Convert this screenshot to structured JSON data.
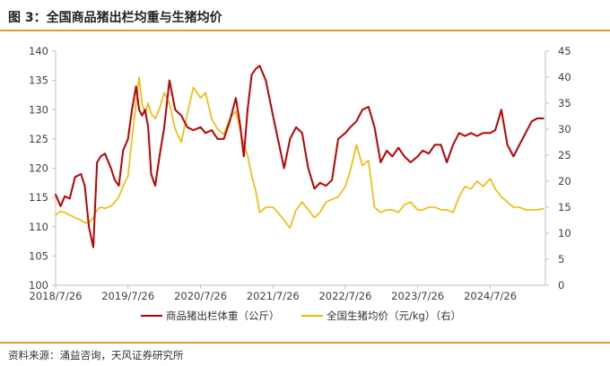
{
  "header": {
    "title": "图 3：全国商品猪出栏均重与生猪均价"
  },
  "source": "资料来源：涌益咨询，天风证券研究所",
  "colors": {
    "accent": "#E79633",
    "weight_series": "#C00000",
    "price_series": "#F5B800",
    "axis": "#BFBFBF"
  },
  "chart_data": {
    "type": "line",
    "title": "图 3：全国商品猪出栏均重与生猪均价",
    "x_ticks": [
      "2018/7/26",
      "2019/7/26",
      "2020/7/26",
      "2021/7/26",
      "2022/7/26",
      "2023/7/26",
      "2024/7/26"
    ],
    "x_range": [
      "2018/7/26",
      "2025/4/30"
    ],
    "y_left": {
      "min": 100,
      "max": 140,
      "step": 5,
      "ticks": [
        "100",
        "105",
        "110",
        "115",
        "120",
        "125",
        "130",
        "135",
        "140"
      ]
    },
    "y_right": {
      "min": 0,
      "max": 45,
      "step": 5,
      "ticks": [
        "0",
        "5",
        "10",
        "15",
        "20",
        "25",
        "30",
        "35",
        "40",
        "45"
      ]
    },
    "grid": false,
    "legend": "bottom",
    "series": [
      {
        "name": "商品猪出栏体重（公斤）",
        "axis": "left",
        "x": [
          "2018/7/26",
          "2018/8/20",
          "2018/9/10",
          "2018/10/5",
          "2018/11/1",
          "2018/12/1",
          "2018/12/20",
          "2019/1/10",
          "2019/2/1",
          "2019/2/20",
          "2019/3/10",
          "2019/4/1",
          "2019/5/1",
          "2019/5/20",
          "2019/6/10",
          "2019/7/1",
          "2019/7/26",
          "2019/8/15",
          "2019/9/5",
          "2019/9/20",
          "2019/10/5",
          "2019/10/20",
          "2019/11/5",
          "2019/11/20",
          "2019/12/10",
          "2020/1/1",
          "2020/1/25",
          "2020/2/20",
          "2020/3/20",
          "2020/4/20",
          "2020/5/20",
          "2020/6/20",
          "2020/7/26",
          "2020/8/20",
          "2020/9/20",
          "2020/10/20",
          "2020/11/20",
          "2020/12/20",
          "2021/1/20",
          "2021/2/10",
          "2021/3/1",
          "2021/3/20",
          "2021/4/10",
          "2021/5/1",
          "2021/5/20",
          "2021/6/20",
          "2021/7/26",
          "2021/8/20",
          "2021/9/20",
          "2021/10/20",
          "2021/11/20",
          "2021/12/20",
          "2022/1/20",
          "2022/2/20",
          "2022/3/20",
          "2022/4/20",
          "2022/5/20",
          "2022/6/20",
          "2022/7/26",
          "2022/8/20",
          "2022/9/20",
          "2022/10/20",
          "2022/11/20",
          "2022/12/20",
          "2023/1/20",
          "2023/2/20",
          "2023/3/20",
          "2023/4/20",
          "2023/5/20",
          "2023/6/20",
          "2023/7/26",
          "2023/8/20",
          "2023/9/20",
          "2023/10/20",
          "2023/11/20",
          "2023/12/20",
          "2024/1/20",
          "2024/2/20",
          "2024/3/20",
          "2024/4/20",
          "2024/5/20",
          "2024/6/20",
          "2024/7/26",
          "2024/8/20",
          "2024/9/20",
          "2024/10/20",
          "2024/11/20",
          "2024/12/20",
          "2025/1/20",
          "2025/2/20",
          "2025/3/20",
          "2025/4/20"
        ],
        "values": [
          115.5,
          113.5,
          115.2,
          114.8,
          118.5,
          119,
          117,
          110,
          106.5,
          121,
          122,
          122.5,
          120,
          118,
          117,
          123,
          125,
          130,
          134,
          130,
          129,
          130,
          127,
          119,
          117,
          122,
          127,
          135,
          130,
          129,
          127,
          126.5,
          127,
          126,
          126.5,
          125,
          125,
          128,
          132,
          127.5,
          122,
          130,
          136,
          137,
          137.5,
          135,
          129,
          125,
          120,
          125,
          127,
          126,
          120,
          116.5,
          117.5,
          117,
          118,
          125,
          126,
          127,
          128,
          130,
          130.5,
          127,
          121,
          123,
          122,
          123.5,
          122,
          121,
          122,
          123,
          122.5,
          124,
          124,
          121,
          124,
          126,
          125.5,
          126,
          125.5,
          126,
          126,
          126.5,
          130,
          124,
          122,
          124,
          126,
          128,
          128.5,
          128.5
        ]
      },
      {
        "name": "全国生猪均价（元/kg）（右）",
        "axis": "right",
        "x": [
          "2018/7/26",
          "2018/8/20",
          "2018/9/10",
          "2018/10/5",
          "2018/11/1",
          "2018/12/1",
          "2018/12/20",
          "2019/1/10",
          "2019/2/1",
          "2019/2/20",
          "2019/3/10",
          "2019/4/1",
          "2019/5/1",
          "2019/5/20",
          "2019/6/10",
          "2019/7/1",
          "2019/7/26",
          "2019/8/15",
          "2019/9/5",
          "2019/9/20",
          "2019/10/5",
          "2019/10/20",
          "2019/11/5",
          "2019/11/20",
          "2019/12/10",
          "2020/1/1",
          "2020/1/25",
          "2020/2/20",
          "2020/3/20",
          "2020/4/20",
          "2020/5/20",
          "2020/6/20",
          "2020/7/26",
          "2020/8/20",
          "2020/9/20",
          "2020/10/20",
          "2020/11/20",
          "2020/12/20",
          "2021/1/20",
          "2021/2/10",
          "2021/3/1",
          "2021/3/20",
          "2021/4/10",
          "2021/5/1",
          "2021/5/20",
          "2021/6/20",
          "2021/7/26",
          "2021/8/20",
          "2021/9/20",
          "2021/10/20",
          "2021/11/20",
          "2021/12/20",
          "2022/1/20",
          "2022/2/20",
          "2022/3/20",
          "2022/4/20",
          "2022/5/20",
          "2022/6/20",
          "2022/7/26",
          "2022/8/20",
          "2022/9/20",
          "2022/10/20",
          "2022/11/20",
          "2022/12/20",
          "2023/1/20",
          "2023/2/20",
          "2023/3/20",
          "2023/4/20",
          "2023/5/20",
          "2023/6/20",
          "2023/7/26",
          "2023/8/20",
          "2023/9/20",
          "2023/10/20",
          "2023/11/20",
          "2023/12/20",
          "2024/1/20",
          "2024/2/20",
          "2024/3/20",
          "2024/4/20",
          "2024/5/20",
          "2024/6/20",
          "2024/7/26",
          "2024/8/20",
          "2024/9/20",
          "2024/10/20",
          "2024/11/20",
          "2024/12/20",
          "2025/1/20",
          "2025/2/20",
          "2025/3/20",
          "2025/4/20"
        ],
        "values": [
          13.5,
          14.2,
          14,
          13.5,
          13,
          12.5,
          12,
          12,
          13,
          14.5,
          15,
          14.8,
          15.2,
          16,
          17,
          19,
          21,
          28,
          35,
          40,
          35,
          33,
          35,
          33,
          32,
          34,
          37,
          35,
          30,
          27.5,
          33,
          38,
          36,
          37,
          32,
          30,
          29,
          32,
          33.5,
          30,
          27,
          25,
          21,
          18,
          14,
          15,
          15,
          14,
          12.5,
          11,
          14.5,
          16,
          14.5,
          13,
          14,
          16,
          16.5,
          17,
          19,
          22,
          27,
          23,
          24,
          15,
          14,
          14.5,
          14.5,
          14,
          15.5,
          16,
          14.5,
          14.5,
          15,
          15,
          14.5,
          14.5,
          14,
          17,
          19,
          18.5,
          20,
          19,
          20.5,
          18.5,
          17,
          16,
          15,
          15,
          14.5,
          14.5,
          14.5,
          14.7
        ]
      }
    ]
  }
}
